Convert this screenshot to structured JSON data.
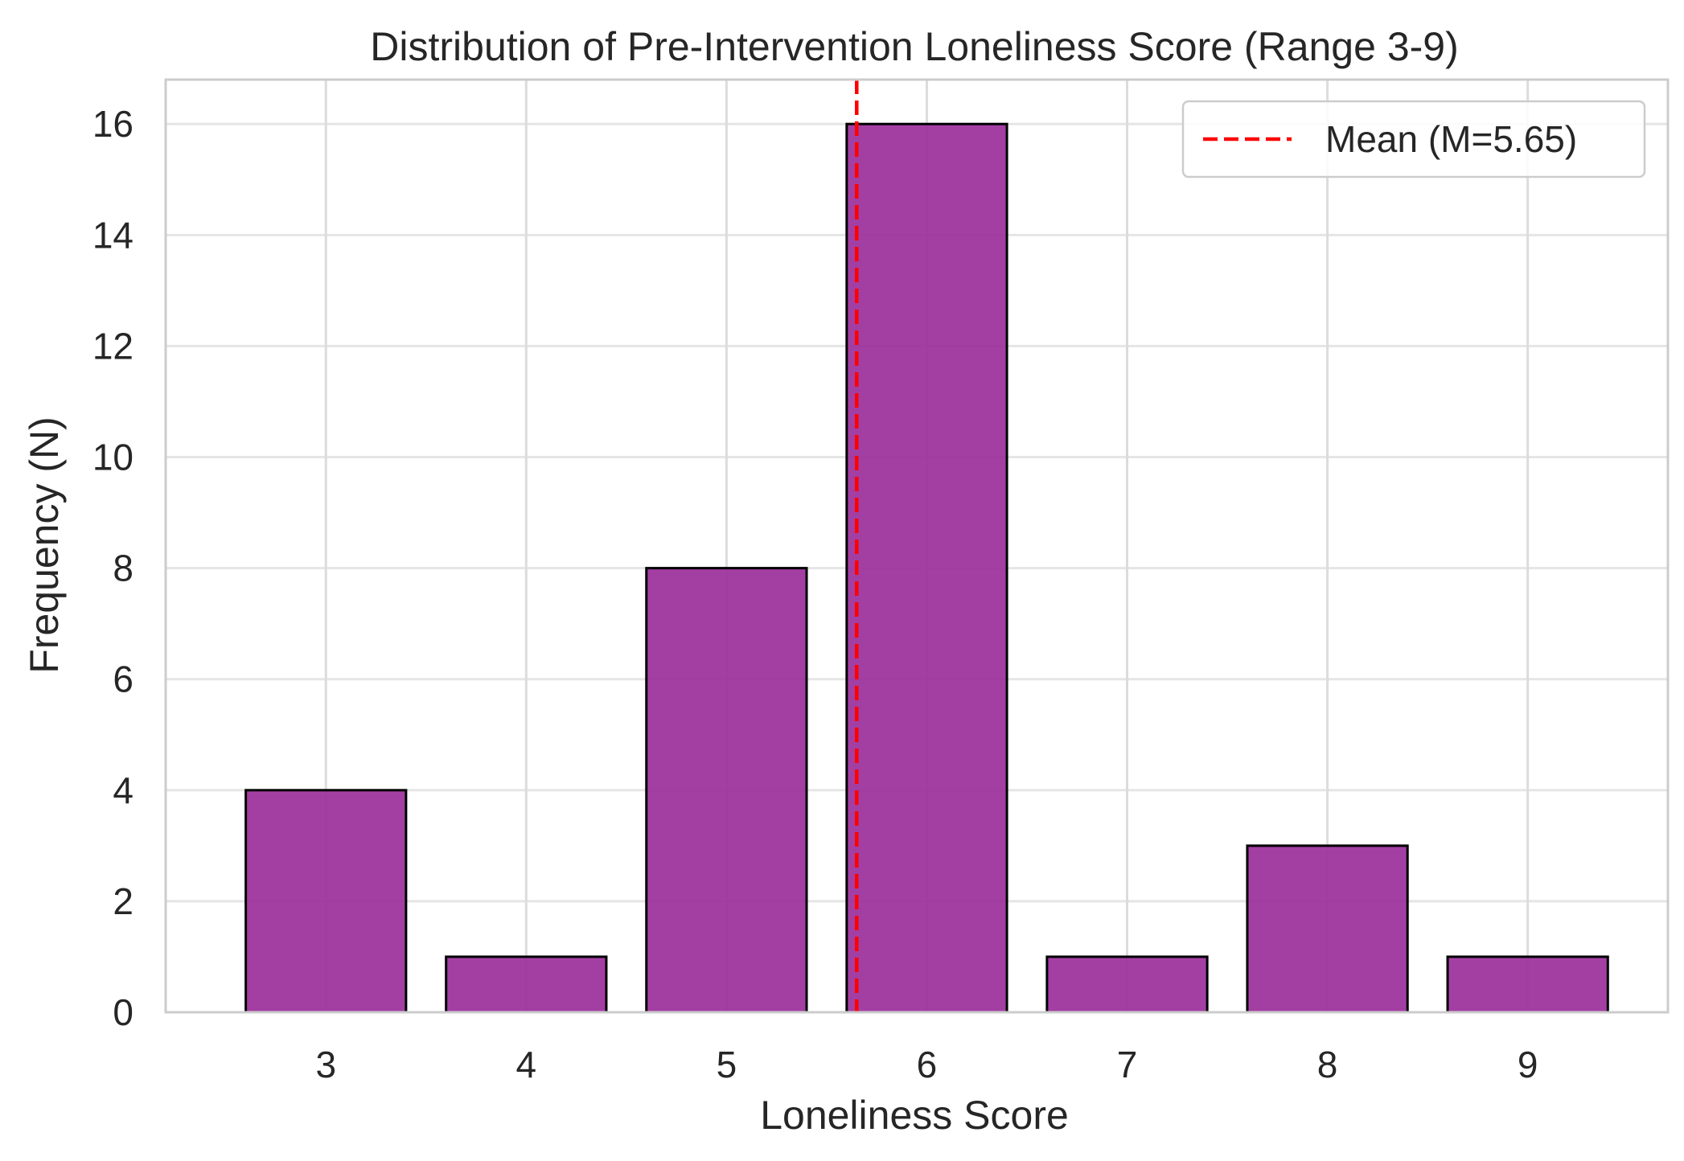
{
  "chart_data": {
    "type": "bar",
    "title": "Distribution of Pre-Intervention Loneliness Score (Range 3-9)",
    "xlabel": "Loneliness Score",
    "ylabel": "Frequency (N)",
    "categories": [
      "3",
      "4",
      "5",
      "6",
      "7",
      "8",
      "9"
    ],
    "x": [
      3,
      4,
      5,
      6,
      7,
      8,
      9
    ],
    "values": [
      4,
      1,
      8,
      16,
      1,
      3,
      1
    ],
    "xlim": [
      2.2,
      9.7
    ],
    "ylim": [
      0,
      16.8
    ],
    "yticks": [
      0,
      2,
      4,
      6,
      8,
      10,
      12,
      14,
      16
    ],
    "bar_color": "#9b2f9b",
    "bar_edge_color": "#000000",
    "mean_line": {
      "value": 5.65,
      "label": "Mean (M=5.65)",
      "color": "#ff0000",
      "style": "dashed"
    },
    "grid": true,
    "legend_position": "top-right"
  }
}
